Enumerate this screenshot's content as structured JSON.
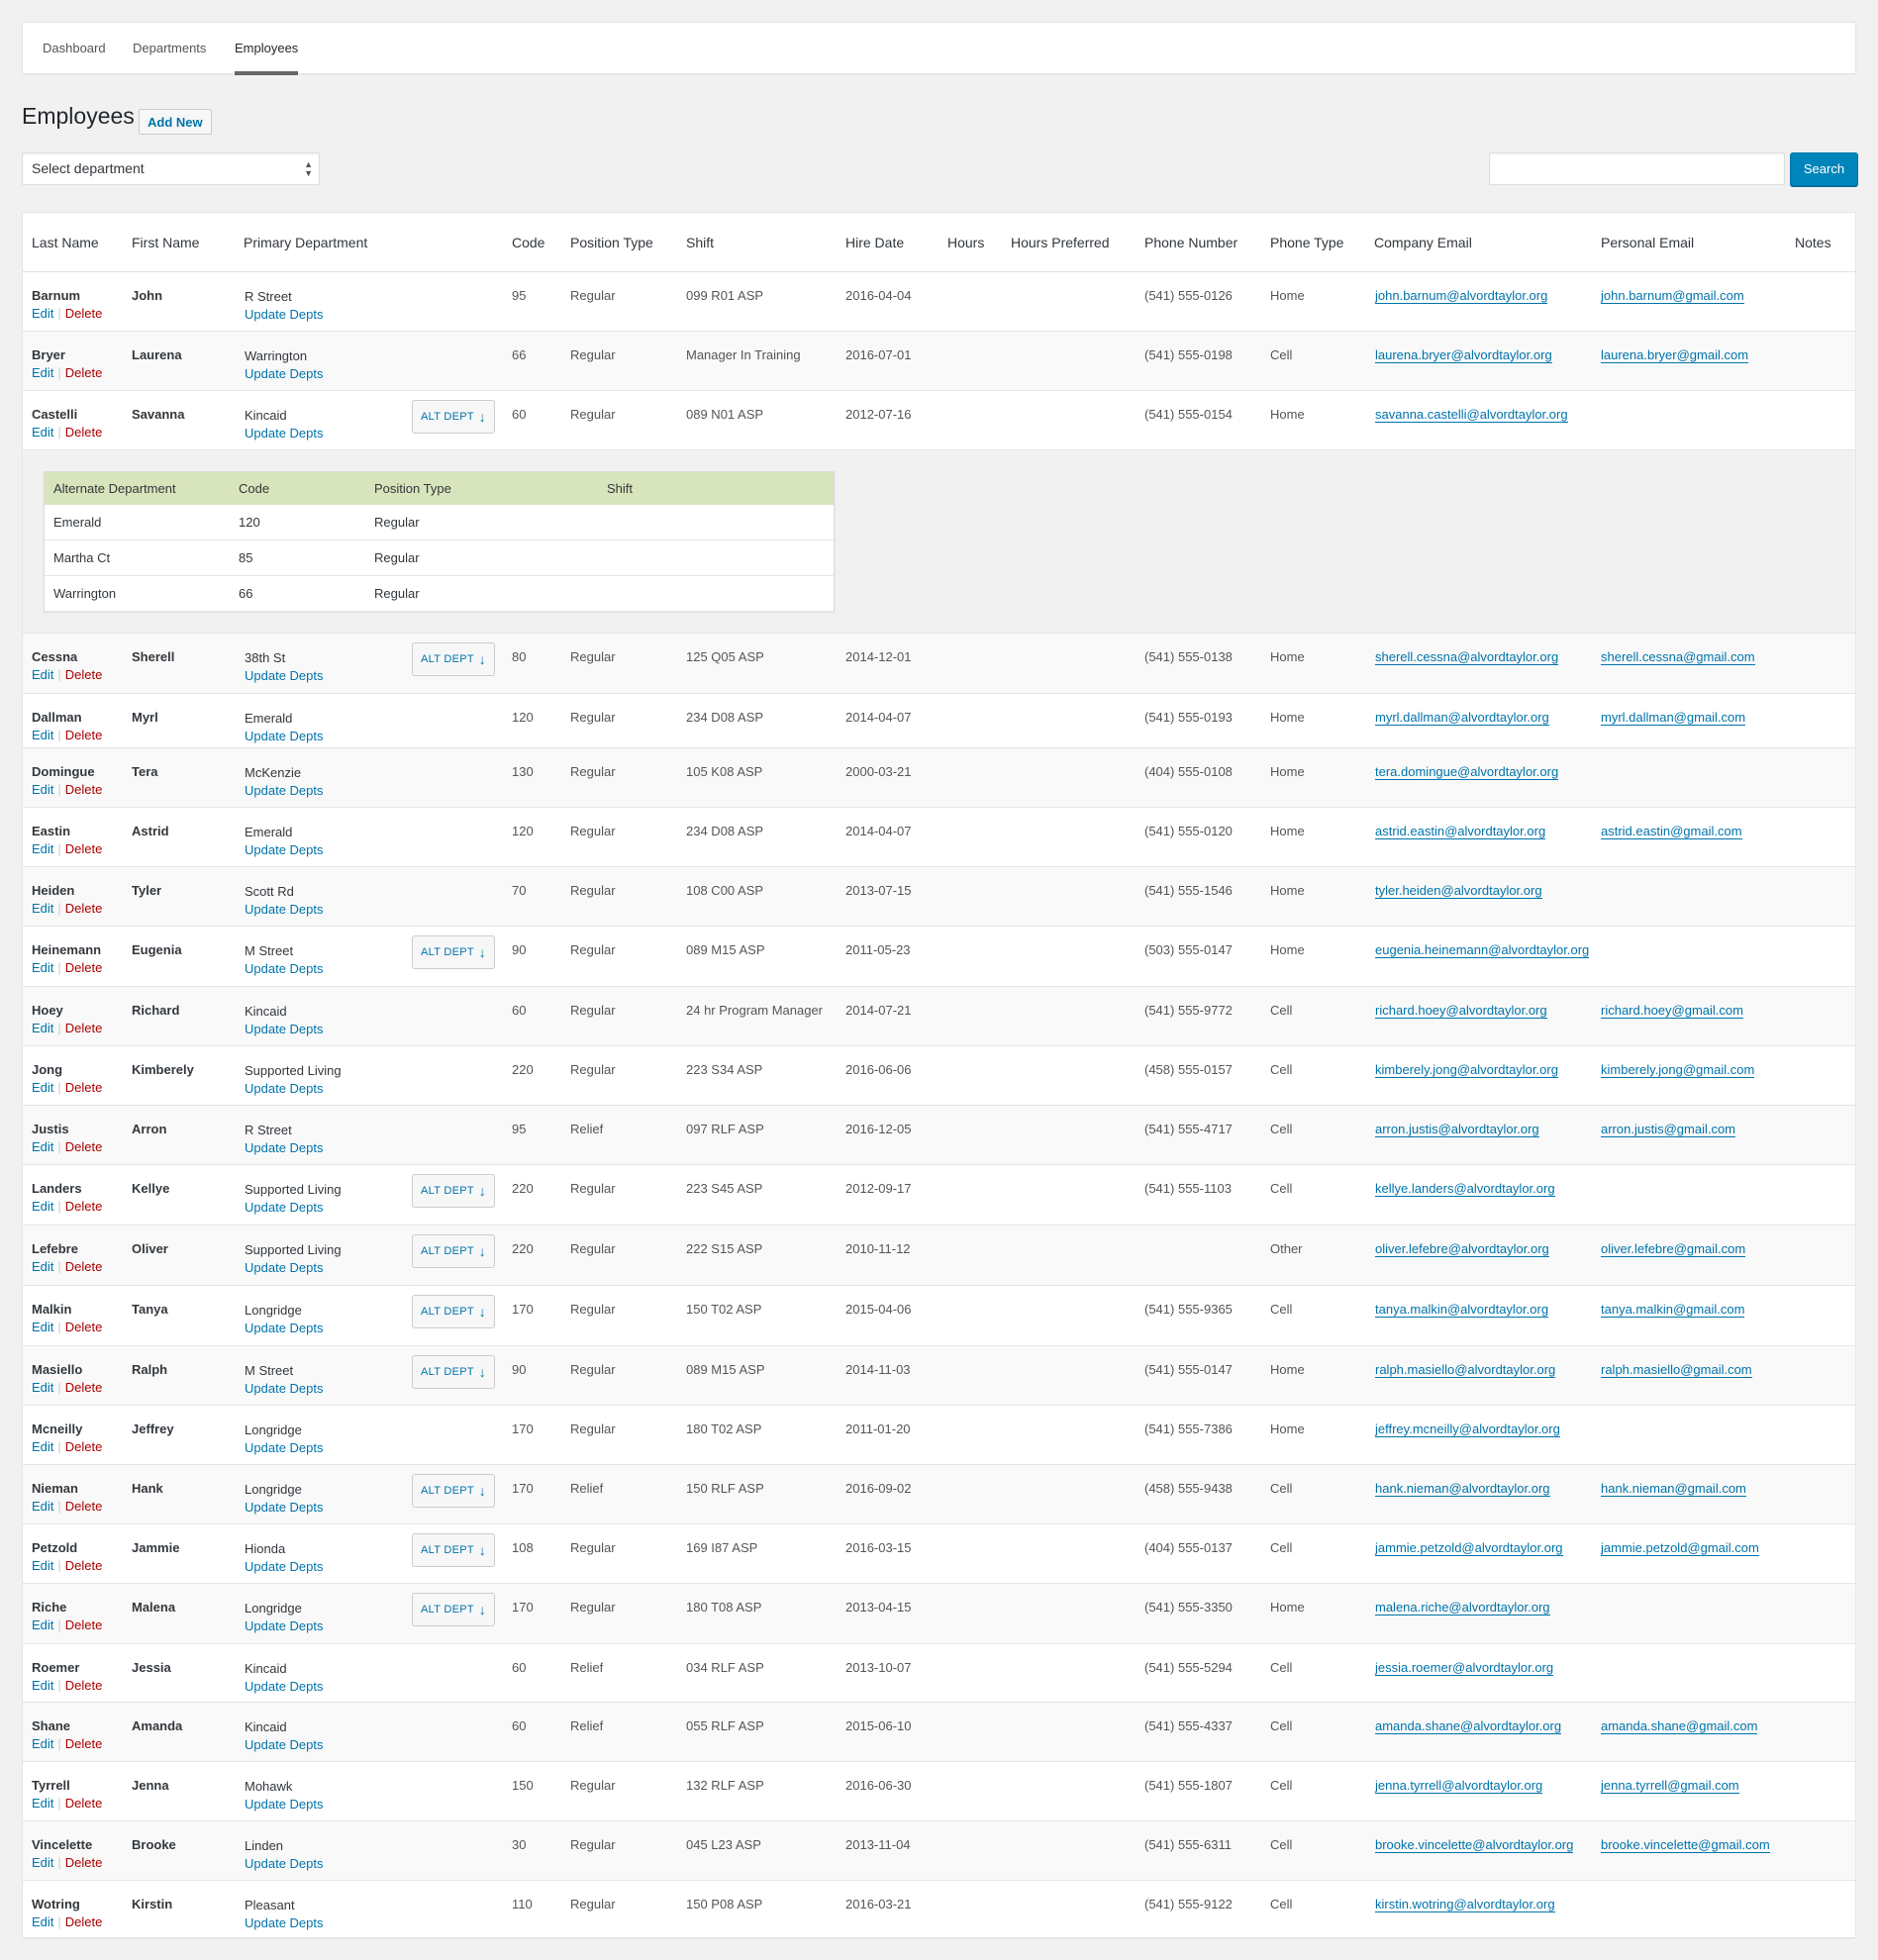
{
  "nav": {
    "tabs": [
      "Dashboard",
      "Departments",
      "Employees"
    ],
    "active": "Employees"
  },
  "page": {
    "title": "Employees",
    "add_new": "Add New"
  },
  "filter": {
    "department_placeholder": "Select department",
    "search_value": "",
    "search_button": "Search"
  },
  "table": {
    "columns": [
      "Last Name",
      "First Name",
      "Primary Department",
      "Code",
      "Position Type",
      "Shift",
      "Hire Date",
      "Hours",
      "Hours Preferred",
      "Phone Number",
      "Phone Type",
      "Company Email",
      "Personal Email",
      "Notes"
    ],
    "edit_label": "Edit",
    "delete_label": "Delete",
    "update_label": "Update Depts",
    "alt_label": "ALT DEPT",
    "rows": [
      {
        "last": "Barnum",
        "first": "John",
        "dept": "R Street",
        "code": "95",
        "pos": "Regular",
        "shift": "099 R01 ASP",
        "hire": "2016-04-04",
        "phone": "(541) 555-0126",
        "ptype": "Home",
        "cemail": "john.barnum@alvordtaylor.org",
        "pemail": "john.barnum@gmail.com",
        "alt": false
      },
      {
        "last": "Bryer",
        "first": "Laurena",
        "dept": "Warrington",
        "code": "66",
        "pos": "Regular",
        "shift": "Manager In Training",
        "hire": "2016-07-01",
        "phone": "(541) 555-0198",
        "ptype": "Cell",
        "cemail": "laurena.bryer@alvordtaylor.org",
        "pemail": "laurena.bryer@gmail.com",
        "alt": false
      },
      {
        "last": "Castelli",
        "first": "Savanna",
        "dept": "Kincaid",
        "code": "60",
        "pos": "Regular",
        "shift": "089 N01 ASP",
        "hire": "2012-07-16",
        "phone": "(541) 555-0154",
        "ptype": "Home",
        "cemail": "savanna.castelli@alvordtaylor.org",
        "pemail": "",
        "alt": true
      },
      {
        "last": "Cessna",
        "first": "Sherell",
        "dept": "38th St",
        "code": "80",
        "pos": "Regular",
        "shift": "125 Q05 ASP",
        "hire": "2014-12-01",
        "phone": "(541) 555-0138",
        "ptype": "Home",
        "cemail": "sherell.cessna@alvordtaylor.org",
        "pemail": "sherell.cessna@gmail.com",
        "alt": true
      },
      {
        "last": "Dallman",
        "first": "Myrl",
        "dept": "Emerald",
        "code": "120",
        "pos": "Regular",
        "shift": "234 D08 ASP",
        "hire": "2014-04-07",
        "phone": "(541) 555-0193",
        "ptype": "Home",
        "cemail": "myrl.dallman@alvordtaylor.org",
        "pemail": "myrl.dallman@gmail.com",
        "alt": false
      },
      {
        "last": "Domingue",
        "first": "Tera",
        "dept": "McKenzie",
        "code": "130",
        "pos": "Regular",
        "shift": "105 K08 ASP",
        "hire": "2000-03-21",
        "phone": "(404) 555-0108",
        "ptype": "Home",
        "cemail": "tera.domingue@alvordtaylor.org",
        "pemail": "",
        "alt": false
      },
      {
        "last": "Eastin",
        "first": "Astrid",
        "dept": "Emerald",
        "code": "120",
        "pos": "Regular",
        "shift": "234 D08 ASP",
        "hire": "2014-04-07",
        "phone": "(541) 555-0120",
        "ptype": "Home",
        "cemail": "astrid.eastin@alvordtaylor.org",
        "pemail": "astrid.eastin@gmail.com",
        "alt": false
      },
      {
        "last": "Heiden",
        "first": "Tyler",
        "dept": "Scott Rd",
        "code": "70",
        "pos": "Regular",
        "shift": "108 C00 ASP",
        "hire": "2013-07-15",
        "phone": "(541) 555-1546",
        "ptype": "Home",
        "cemail": "tyler.heiden@alvordtaylor.org",
        "pemail": "",
        "alt": false
      },
      {
        "last": "Heinemann",
        "first": "Eugenia",
        "dept": "M Street",
        "code": "90",
        "pos": "Regular",
        "shift": "089 M15 ASP",
        "hire": "2011-05-23",
        "phone": "(503) 555-0147",
        "ptype": "Home",
        "cemail": "eugenia.heinemann@alvordtaylor.org",
        "pemail": "",
        "alt": true
      },
      {
        "last": "Hoey",
        "first": "Richard",
        "dept": "Kincaid",
        "code": "60",
        "pos": "Regular",
        "shift": "24 hr Program Manager",
        "hire": "2014-07-21",
        "phone": "(541) 555-9772",
        "ptype": "Cell",
        "cemail": "richard.hoey@alvordtaylor.org",
        "pemail": "richard.hoey@gmail.com",
        "alt": false
      },
      {
        "last": "Jong",
        "first": "Kimberely",
        "dept": "Supported Living",
        "code": "220",
        "pos": "Regular",
        "shift": "223 S34 ASP",
        "hire": "2016-06-06",
        "phone": "(458) 555-0157",
        "ptype": "Cell",
        "cemail": "kimberely.jong@alvordtaylor.org",
        "pemail": "kimberely.jong@gmail.com",
        "alt": false
      },
      {
        "last": "Justis",
        "first": "Arron",
        "dept": "R Street",
        "code": "95",
        "pos": "Relief",
        "shift": "097 RLF ASP",
        "hire": "2016-12-05",
        "phone": "(541) 555-4717",
        "ptype": "Cell",
        "cemail": "arron.justis@alvordtaylor.org",
        "pemail": "arron.justis@gmail.com",
        "alt": false
      },
      {
        "last": "Landers",
        "first": "Kellye",
        "dept": "Supported Living",
        "code": "220",
        "pos": "Regular",
        "shift": "223 S45 ASP",
        "hire": "2012-09-17",
        "phone": "(541) 555-1103",
        "ptype": "Cell",
        "cemail": "kellye.landers@alvordtaylor.org",
        "pemail": "",
        "alt": true
      },
      {
        "last": "Lefebre",
        "first": "Oliver",
        "dept": "Supported Living",
        "code": "220",
        "pos": "Regular",
        "shift": "222 S15 ASP",
        "hire": "2010-11-12",
        "phone": "",
        "ptype": "Other",
        "cemail": "oliver.lefebre@alvordtaylor.org",
        "pemail": "oliver.lefebre@gmail.com",
        "alt": true
      },
      {
        "last": "Malkin",
        "first": "Tanya",
        "dept": "Longridge",
        "code": "170",
        "pos": "Regular",
        "shift": "150 T02 ASP",
        "hire": "2015-04-06",
        "phone": "(541) 555-9365",
        "ptype": "Cell",
        "cemail": "tanya.malkin@alvordtaylor.org",
        "pemail": "tanya.malkin@gmail.com",
        "alt": true
      },
      {
        "last": "Masiello",
        "first": "Ralph",
        "dept": "M Street",
        "code": "90",
        "pos": "Regular",
        "shift": "089 M15 ASP",
        "hire": "2014-11-03",
        "phone": "(541) 555-0147",
        "ptype": "Home",
        "cemail": "ralph.masiello@alvordtaylor.org",
        "pemail": "ralph.masiello@gmail.com",
        "alt": true
      },
      {
        "last": "Mcneilly",
        "first": "Jeffrey",
        "dept": "Longridge",
        "code": "170",
        "pos": "Regular",
        "shift": "180 T02 ASP",
        "hire": "2011-01-20",
        "phone": "(541) 555-7386",
        "ptype": "Home",
        "cemail": "jeffrey.mcneilly@alvordtaylor.org",
        "pemail": "",
        "alt": false
      },
      {
        "last": "Nieman",
        "first": "Hank",
        "dept": "Longridge",
        "code": "170",
        "pos": "Relief",
        "shift": "150 RLF ASP",
        "hire": "2016-09-02",
        "phone": "(458) 555-9438",
        "ptype": "Cell",
        "cemail": "hank.nieman@alvordtaylor.org",
        "pemail": "hank.nieman@gmail.com",
        "alt": true
      },
      {
        "last": "Petzold",
        "first": "Jammie",
        "dept": "Hionda",
        "code": "108",
        "pos": "Regular",
        "shift": "169 I87 ASP",
        "hire": "2016-03-15",
        "phone": "(404) 555-0137",
        "ptype": "Cell",
        "cemail": "jammie.petzold@alvordtaylor.org",
        "pemail": "jammie.petzold@gmail.com",
        "alt": true
      },
      {
        "last": "Riche",
        "first": "Malena",
        "dept": "Longridge",
        "code": "170",
        "pos": "Regular",
        "shift": "180 T08 ASP",
        "hire": "2013-04-15",
        "phone": "(541) 555-3350",
        "ptype": "Home",
        "cemail": "malena.riche@alvordtaylor.org",
        "pemail": "",
        "alt": true
      },
      {
        "last": "Roemer",
        "first": "Jessia",
        "dept": "Kincaid",
        "code": "60",
        "pos": "Relief",
        "shift": "034 RLF ASP",
        "hire": "2013-10-07",
        "phone": "(541) 555-5294",
        "ptype": "Cell",
        "cemail": "jessia.roemer@alvordtaylor.org",
        "pemail": "",
        "alt": false
      },
      {
        "last": "Shane",
        "first": "Amanda",
        "dept": "Kincaid",
        "code": "60",
        "pos": "Relief",
        "shift": "055 RLF ASP",
        "hire": "2015-06-10",
        "phone": "(541) 555-4337",
        "ptype": "Cell",
        "cemail": "amanda.shane@alvordtaylor.org",
        "pemail": "amanda.shane@gmail.com",
        "alt": false
      },
      {
        "last": "Tyrrell",
        "first": "Jenna",
        "dept": "Mohawk",
        "code": "150",
        "pos": "Regular",
        "shift": "132 RLF ASP",
        "hire": "2016-06-30",
        "phone": "(541) 555-1807",
        "ptype": "Cell",
        "cemail": "jenna.tyrrell@alvordtaylor.org",
        "pemail": "jenna.tyrrell@gmail.com",
        "alt": false
      },
      {
        "last": "Vincelette",
        "first": "Brooke",
        "dept": "Linden",
        "code": "30",
        "pos": "Regular",
        "shift": "045 L23 ASP",
        "hire": "2013-11-04",
        "phone": "(541) 555-6311",
        "ptype": "Cell",
        "cemail": "brooke.vincelette@alvordtaylor.org",
        "pemail": "brooke.vincelette@gmail.com",
        "alt": false
      },
      {
        "last": "Wotring",
        "first": "Kirstin",
        "dept": "Pleasant",
        "code": "110",
        "pos": "Regular",
        "shift": "150 P08 ASP",
        "hire": "2016-03-21",
        "phone": "(541) 555-9122",
        "ptype": "Cell",
        "cemail": "kirstin.wotring@alvordtaylor.org",
        "pemail": "",
        "alt": false
      }
    ],
    "alt_panel": {
      "columns": [
        "Alternate Department",
        "Code",
        "Position Type",
        "Shift"
      ],
      "rows": [
        {
          "dept": "Emerald",
          "code": "120",
          "pos": "Regular",
          "shift": ""
        },
        {
          "dept": "Martha Ct",
          "code": "85",
          "pos": "Regular",
          "shift": ""
        },
        {
          "dept": "Warrington",
          "code": "66",
          "pos": "Regular",
          "shift": ""
        }
      ]
    }
  }
}
